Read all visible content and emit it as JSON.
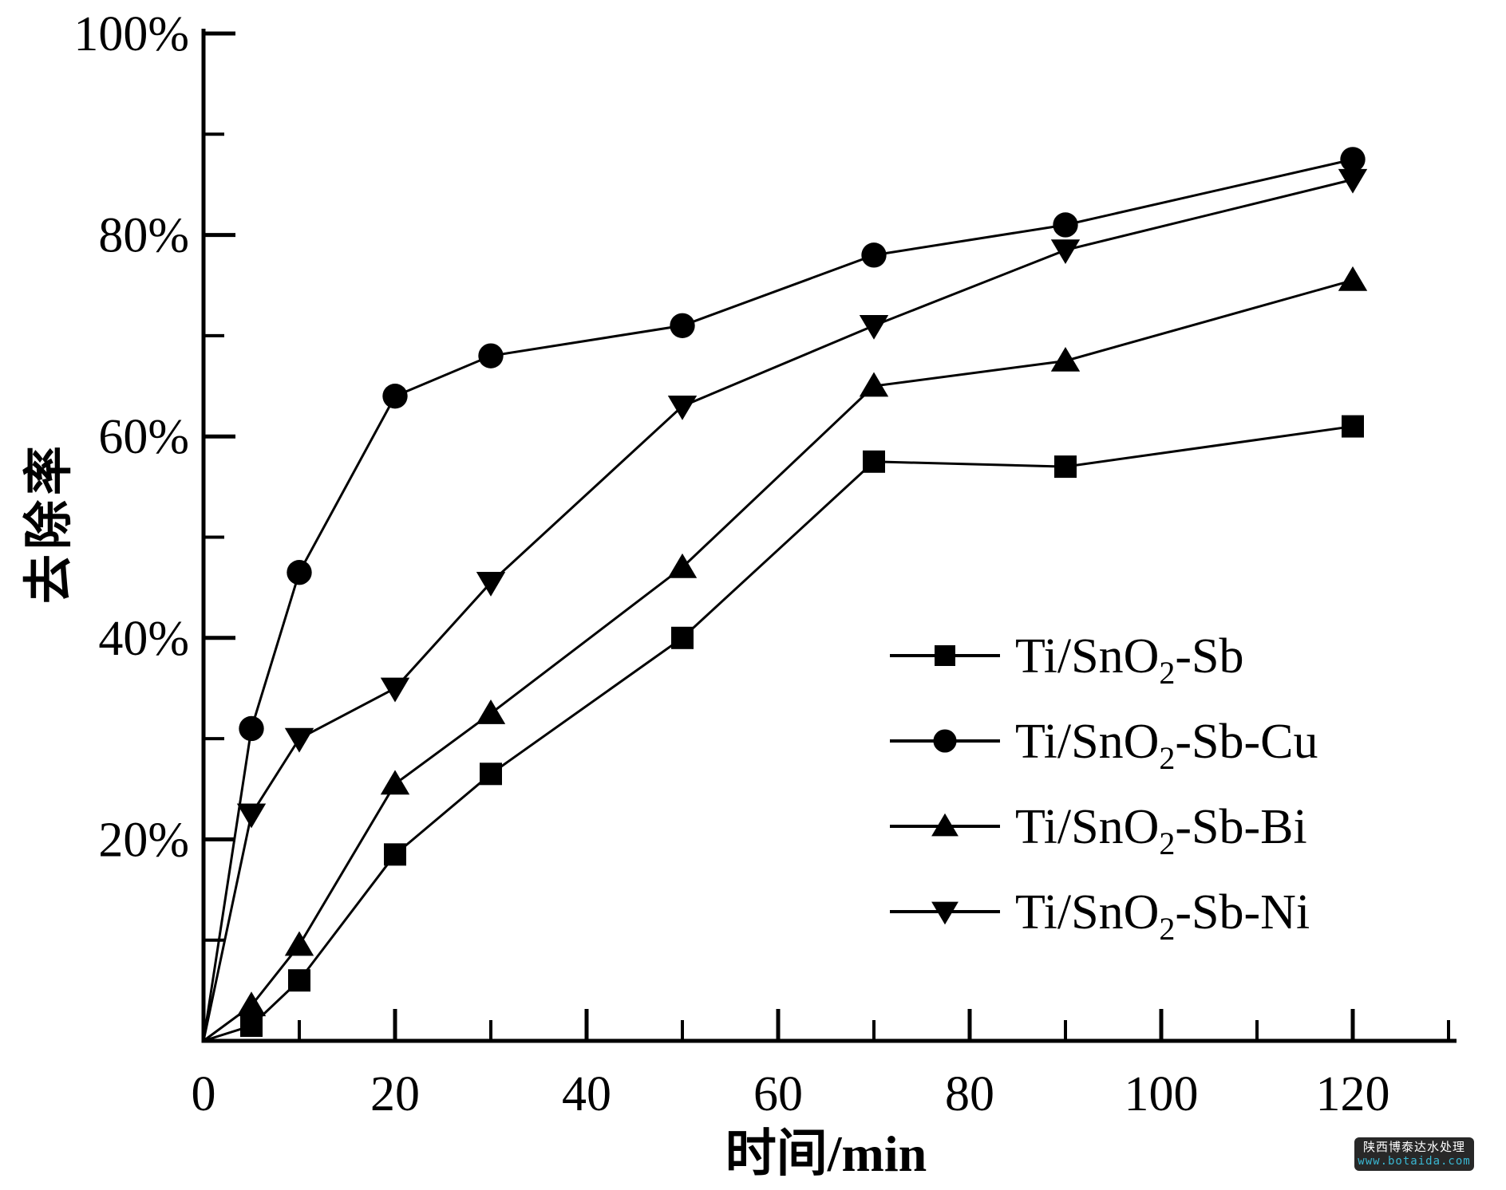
{
  "chart_data": {
    "type": "line",
    "title": "",
    "xlabel": "时间/min",
    "ylabel": "去除率",
    "xlim": [
      0,
      130.5
    ],
    "ylim": [
      0,
      100
    ],
    "grid": false,
    "legend_position": "inside-lower-right",
    "line_color": "#000000",
    "background_color": "#ffffff",
    "x": [
      0,
      5,
      10,
      20,
      30,
      50,
      70,
      90,
      120
    ],
    "series": [
      {
        "name": "Ti/SnO2-Sb",
        "marker": "square",
        "label_parts": {
          "pre": "Ti/SnO",
          "sub": "2",
          "post": "-Sb"
        },
        "values": [
          0,
          1.5,
          6,
          18.5,
          26.5,
          40,
          57.5,
          57,
          61
        ]
      },
      {
        "name": "Ti/SnO2-Sb-Cu",
        "marker": "circle",
        "label_parts": {
          "pre": "Ti/SnO",
          "sub": "2",
          "post": "-Sb-Cu"
        },
        "values": [
          0,
          31,
          46.5,
          64,
          68,
          71,
          78,
          81,
          87.5
        ]
      },
      {
        "name": "Ti/SnO2-Sb-Bi",
        "marker": "triangle-up",
        "label_parts": {
          "pre": "Ti/SnO",
          "sub": "2",
          "post": "-Sb-Bi"
        },
        "values": [
          0,
          3.5,
          9.5,
          25.5,
          32.5,
          47,
          65,
          67.5,
          75.5
        ]
      },
      {
        "name": "Ti/SnO2-Sb-Ni",
        "marker": "triangle-down",
        "label_parts": {
          "pre": "Ti/SnO",
          "sub": "2",
          "post": "-Sb-Ni"
        },
        "values": [
          0,
          22.5,
          30,
          35,
          45.5,
          63,
          71,
          78.5,
          85.5
        ]
      }
    ],
    "x_ticks_major": [
      20,
      40,
      60,
      80,
      100,
      120
    ],
    "x_ticks_minor": [
      10,
      30,
      50,
      70,
      90,
      110,
      130
    ],
    "x_tick_labels": [
      {
        "value": 0,
        "label": "0"
      },
      {
        "value": 20,
        "label": "20"
      },
      {
        "value": 40,
        "label": "40"
      },
      {
        "value": 60,
        "label": "60"
      },
      {
        "value": 80,
        "label": "80"
      },
      {
        "value": 100,
        "label": "100"
      },
      {
        "value": 120,
        "label": "120"
      }
    ],
    "y_ticks_major": [
      20,
      40,
      60,
      80,
      100
    ],
    "y_ticks_minor": [
      10,
      30,
      50,
      70,
      90
    ],
    "y_tick_labels": [
      {
        "value": 20,
        "label": "20%"
      },
      {
        "value": 40,
        "label": "40%"
      },
      {
        "value": 60,
        "label": "60%"
      },
      {
        "value": 80,
        "label": "80%"
      },
      {
        "value": 100,
        "label": "100%"
      }
    ]
  },
  "watermark": {
    "line1": "陕西博泰达水处理",
    "line2": "www.botaida.com",
    "bg": "#282828",
    "line1_color": "#ffffff",
    "line2_color": "#3ab7d2"
  }
}
